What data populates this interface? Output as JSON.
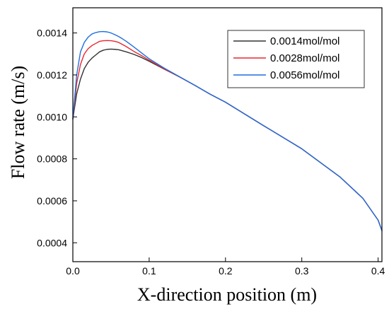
{
  "chart_data": {
    "type": "line",
    "title": "",
    "xlabel": "X-direction position (m)",
    "ylabel": "Flow rate (m/s)",
    "xlim": [
      0.0,
      0.405
    ],
    "ylim": [
      0.00031,
      0.00152
    ],
    "xticks": [
      0.0,
      0.1,
      0.2,
      0.3,
      0.4
    ],
    "xtick_labels": [
      "0.0",
      "0.1",
      "0.2",
      "0.3",
      "0.4"
    ],
    "yticks": [
      0.0004,
      0.0006,
      0.0008,
      0.001,
      0.0012,
      0.0014
    ],
    "ytick_labels": [
      "0.0004",
      "0.0006",
      "0.0008",
      "0.0010",
      "0.0012",
      "0.0014"
    ],
    "grid": false,
    "legend_position": "top-right",
    "series": [
      {
        "name": "0.0014mol/mol",
        "color": "#333333",
        "x": [
          0.0,
          0.005,
          0.01,
          0.015,
          0.02,
          0.025,
          0.03,
          0.035,
          0.04,
          0.045,
          0.05,
          0.055,
          0.06,
          0.065,
          0.07,
          0.08,
          0.09,
          0.1,
          0.12,
          0.14,
          0.16,
          0.18,
          0.2,
          0.25,
          0.3,
          0.35,
          0.38,
          0.4,
          0.405
        ],
        "y": [
          0.00099,
          0.00111,
          0.00118,
          0.00123,
          0.00126,
          0.00128,
          0.001295,
          0.00131,
          0.001318,
          0.001322,
          0.001323,
          0.001322,
          0.00132,
          0.001315,
          0.00131,
          0.001298,
          0.001283,
          0.001265,
          0.001227,
          0.00119,
          0.00115,
          0.001108,
          0.00107,
          0.000958,
          0.000848,
          0.000714,
          0.000612,
          0.000508,
          0.000458
        ]
      },
      {
        "name": "0.0028mol/mol",
        "color": "#e8282e",
        "x": [
          0.0,
          0.005,
          0.01,
          0.015,
          0.02,
          0.025,
          0.03,
          0.035,
          0.04,
          0.045,
          0.05,
          0.055,
          0.06,
          0.065,
          0.07,
          0.08,
          0.09,
          0.1,
          0.12,
          0.14,
          0.16,
          0.18,
          0.2,
          0.25,
          0.3,
          0.35,
          0.38,
          0.4,
          0.405
        ],
        "y": [
          0.00099,
          0.00116,
          0.00125,
          0.0013,
          0.001325,
          0.00134,
          0.00135,
          0.00136,
          0.001363,
          0.001364,
          0.001363,
          0.00136,
          0.001355,
          0.001345,
          0.001335,
          0.001312,
          0.001292,
          0.00127,
          0.001229,
          0.00119,
          0.00115,
          0.001108,
          0.00107,
          0.000958,
          0.000848,
          0.000714,
          0.000612,
          0.000508,
          0.000458
        ]
      },
      {
        "name": "0.0056mol/mol",
        "color": "#1f6fe0",
        "x": [
          0.0,
          0.005,
          0.01,
          0.015,
          0.02,
          0.025,
          0.03,
          0.035,
          0.04,
          0.045,
          0.05,
          0.055,
          0.06,
          0.065,
          0.07,
          0.08,
          0.09,
          0.1,
          0.12,
          0.14,
          0.16,
          0.18,
          0.2,
          0.25,
          0.3,
          0.35,
          0.38,
          0.4,
          0.405
        ],
        "y": [
          0.00099,
          0.0012,
          0.00131,
          0.001355,
          0.00138,
          0.001395,
          0.001402,
          0.001406,
          0.001407,
          0.001405,
          0.0014,
          0.001392,
          0.001383,
          0.001372,
          0.00136,
          0.001333,
          0.001305,
          0.001277,
          0.001232,
          0.001191,
          0.00115,
          0.001108,
          0.00107,
          0.000958,
          0.000848,
          0.000714,
          0.000612,
          0.000508,
          0.000458
        ]
      }
    ]
  }
}
